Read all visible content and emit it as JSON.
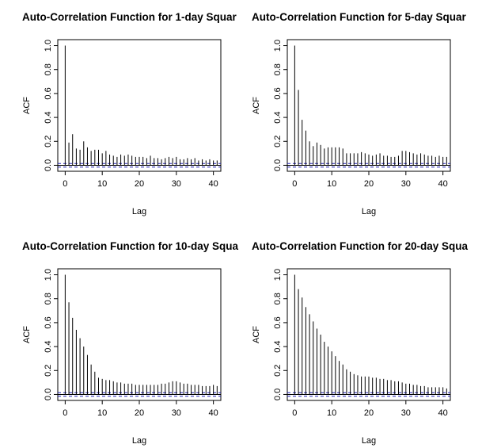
{
  "chart_data": [
    {
      "type": "bar",
      "title": "Auto-Correlation Function for 1-day Squar",
      "xlabel": "Lag",
      "ylabel": "ACF",
      "xlim": [
        -2,
        42
      ],
      "ylim": [
        -0.05,
        1.05
      ],
      "xticks": [
        "0",
        "10",
        "20",
        "30",
        "40"
      ],
      "yticks": [
        "0.0",
        "0.2",
        "0.4",
        "0.6",
        "0.8",
        "1.0"
      ],
      "ci": 0.015,
      "colors": {
        "bars": "#000000",
        "zero_line": "#000000",
        "ci_line": "#1f1fb4"
      },
      "lags": [
        0,
        1,
        2,
        3,
        4,
        5,
        6,
        7,
        8,
        9,
        10,
        11,
        12,
        13,
        14,
        15,
        16,
        17,
        18,
        19,
        20,
        21,
        22,
        23,
        24,
        25,
        26,
        27,
        28,
        29,
        30,
        31,
        32,
        33,
        34,
        35,
        36,
        37,
        38,
        39,
        40,
        41
      ],
      "values": [
        1.0,
        0.19,
        0.26,
        0.14,
        0.13,
        0.2,
        0.15,
        0.12,
        0.13,
        0.13,
        0.1,
        0.12,
        0.09,
        0.08,
        0.07,
        0.09,
        0.08,
        0.09,
        0.08,
        0.07,
        0.07,
        0.07,
        0.06,
        0.08,
        0.06,
        0.06,
        0.05,
        0.06,
        0.07,
        0.06,
        0.07,
        0.05,
        0.05,
        0.06,
        0.05,
        0.06,
        0.04,
        0.05,
        0.04,
        0.05,
        0.04,
        0.04
      ]
    },
    {
      "type": "bar",
      "title": "Auto-Correlation Function for 5-day  Squar",
      "xlabel": "Lag",
      "ylabel": "ACF",
      "xlim": [
        -2,
        42
      ],
      "ylim": [
        -0.05,
        1.05
      ],
      "xticks": [
        "0",
        "10",
        "20",
        "30",
        "40"
      ],
      "yticks": [
        "0.0",
        "0.2",
        "0.4",
        "0.6",
        "0.8",
        "1.0"
      ],
      "ci": 0.015,
      "colors": {
        "bars": "#000000",
        "zero_line": "#000000",
        "ci_line": "#1f1fb4"
      },
      "lags": [
        0,
        1,
        2,
        3,
        4,
        5,
        6,
        7,
        8,
        9,
        10,
        11,
        12,
        13,
        14,
        15,
        16,
        17,
        18,
        19,
        20,
        21,
        22,
        23,
        24,
        25,
        26,
        27,
        28,
        29,
        30,
        31,
        32,
        33,
        34,
        35,
        36,
        37,
        38,
        39,
        40,
        41
      ],
      "values": [
        1.0,
        0.63,
        0.38,
        0.29,
        0.2,
        0.16,
        0.19,
        0.17,
        0.14,
        0.15,
        0.15,
        0.15,
        0.15,
        0.14,
        0.1,
        0.1,
        0.1,
        0.1,
        0.11,
        0.1,
        0.09,
        0.08,
        0.09,
        0.1,
        0.08,
        0.08,
        0.07,
        0.07,
        0.08,
        0.12,
        0.12,
        0.11,
        0.1,
        0.09,
        0.1,
        0.09,
        0.08,
        0.08,
        0.07,
        0.08,
        0.07,
        0.07
      ]
    },
    {
      "type": "bar",
      "title": "Auto-Correlation Function for 10-day Squa",
      "xlabel": "Lag",
      "ylabel": "ACF",
      "xlim": [
        -2,
        42
      ],
      "ylim": [
        -0.05,
        1.05
      ],
      "xticks": [
        "0",
        "10",
        "20",
        "30",
        "40"
      ],
      "yticks": [
        "0.0",
        "0.2",
        "0.4",
        "0.6",
        "0.8",
        "1.0"
      ],
      "ci": 0.015,
      "colors": {
        "bars": "#000000",
        "zero_line": "#000000",
        "ci_line": "#1f1fb4"
      },
      "lags": [
        0,
        1,
        2,
        3,
        4,
        5,
        6,
        7,
        8,
        9,
        10,
        11,
        12,
        13,
        14,
        15,
        16,
        17,
        18,
        19,
        20,
        21,
        22,
        23,
        24,
        25,
        26,
        27,
        28,
        29,
        30,
        31,
        32,
        33,
        34,
        35,
        36,
        37,
        38,
        39,
        40,
        41
      ],
      "values": [
        1.0,
        0.77,
        0.64,
        0.54,
        0.47,
        0.4,
        0.33,
        0.25,
        0.19,
        0.14,
        0.13,
        0.12,
        0.12,
        0.11,
        0.1,
        0.1,
        0.09,
        0.09,
        0.09,
        0.08,
        0.08,
        0.08,
        0.08,
        0.08,
        0.08,
        0.08,
        0.09,
        0.09,
        0.1,
        0.11,
        0.11,
        0.1,
        0.09,
        0.09,
        0.08,
        0.08,
        0.08,
        0.07,
        0.07,
        0.07,
        0.08,
        0.07
      ]
    },
    {
      "type": "bar",
      "title": "Auto-Correlation Function for 20-day Squa",
      "xlabel": "Lag",
      "ylabel": "ACF",
      "xlim": [
        -2,
        42
      ],
      "ylim": [
        -0.05,
        1.05
      ],
      "xticks": [
        "0",
        "10",
        "20",
        "30",
        "40"
      ],
      "yticks": [
        "0.0",
        "0.2",
        "0.4",
        "0.6",
        "0.8",
        "1.0"
      ],
      "ci": 0.015,
      "colors": {
        "bars": "#000000",
        "zero_line": "#000000",
        "ci_line": "#1f1fb4"
      },
      "lags": [
        0,
        1,
        2,
        3,
        4,
        5,
        6,
        7,
        8,
        9,
        10,
        11,
        12,
        13,
        14,
        15,
        16,
        17,
        18,
        19,
        20,
        21,
        22,
        23,
        24,
        25,
        26,
        27,
        28,
        29,
        30,
        31,
        32,
        33,
        34,
        35,
        36,
        37,
        38,
        39,
        40,
        41
      ],
      "values": [
        1.0,
        0.88,
        0.81,
        0.73,
        0.67,
        0.61,
        0.55,
        0.5,
        0.44,
        0.4,
        0.36,
        0.32,
        0.28,
        0.25,
        0.21,
        0.19,
        0.17,
        0.16,
        0.15,
        0.15,
        0.15,
        0.14,
        0.14,
        0.13,
        0.13,
        0.12,
        0.12,
        0.11,
        0.11,
        0.1,
        0.09,
        0.09,
        0.08,
        0.08,
        0.07,
        0.07,
        0.06,
        0.06,
        0.06,
        0.06,
        0.06,
        0.05
      ]
    }
  ]
}
